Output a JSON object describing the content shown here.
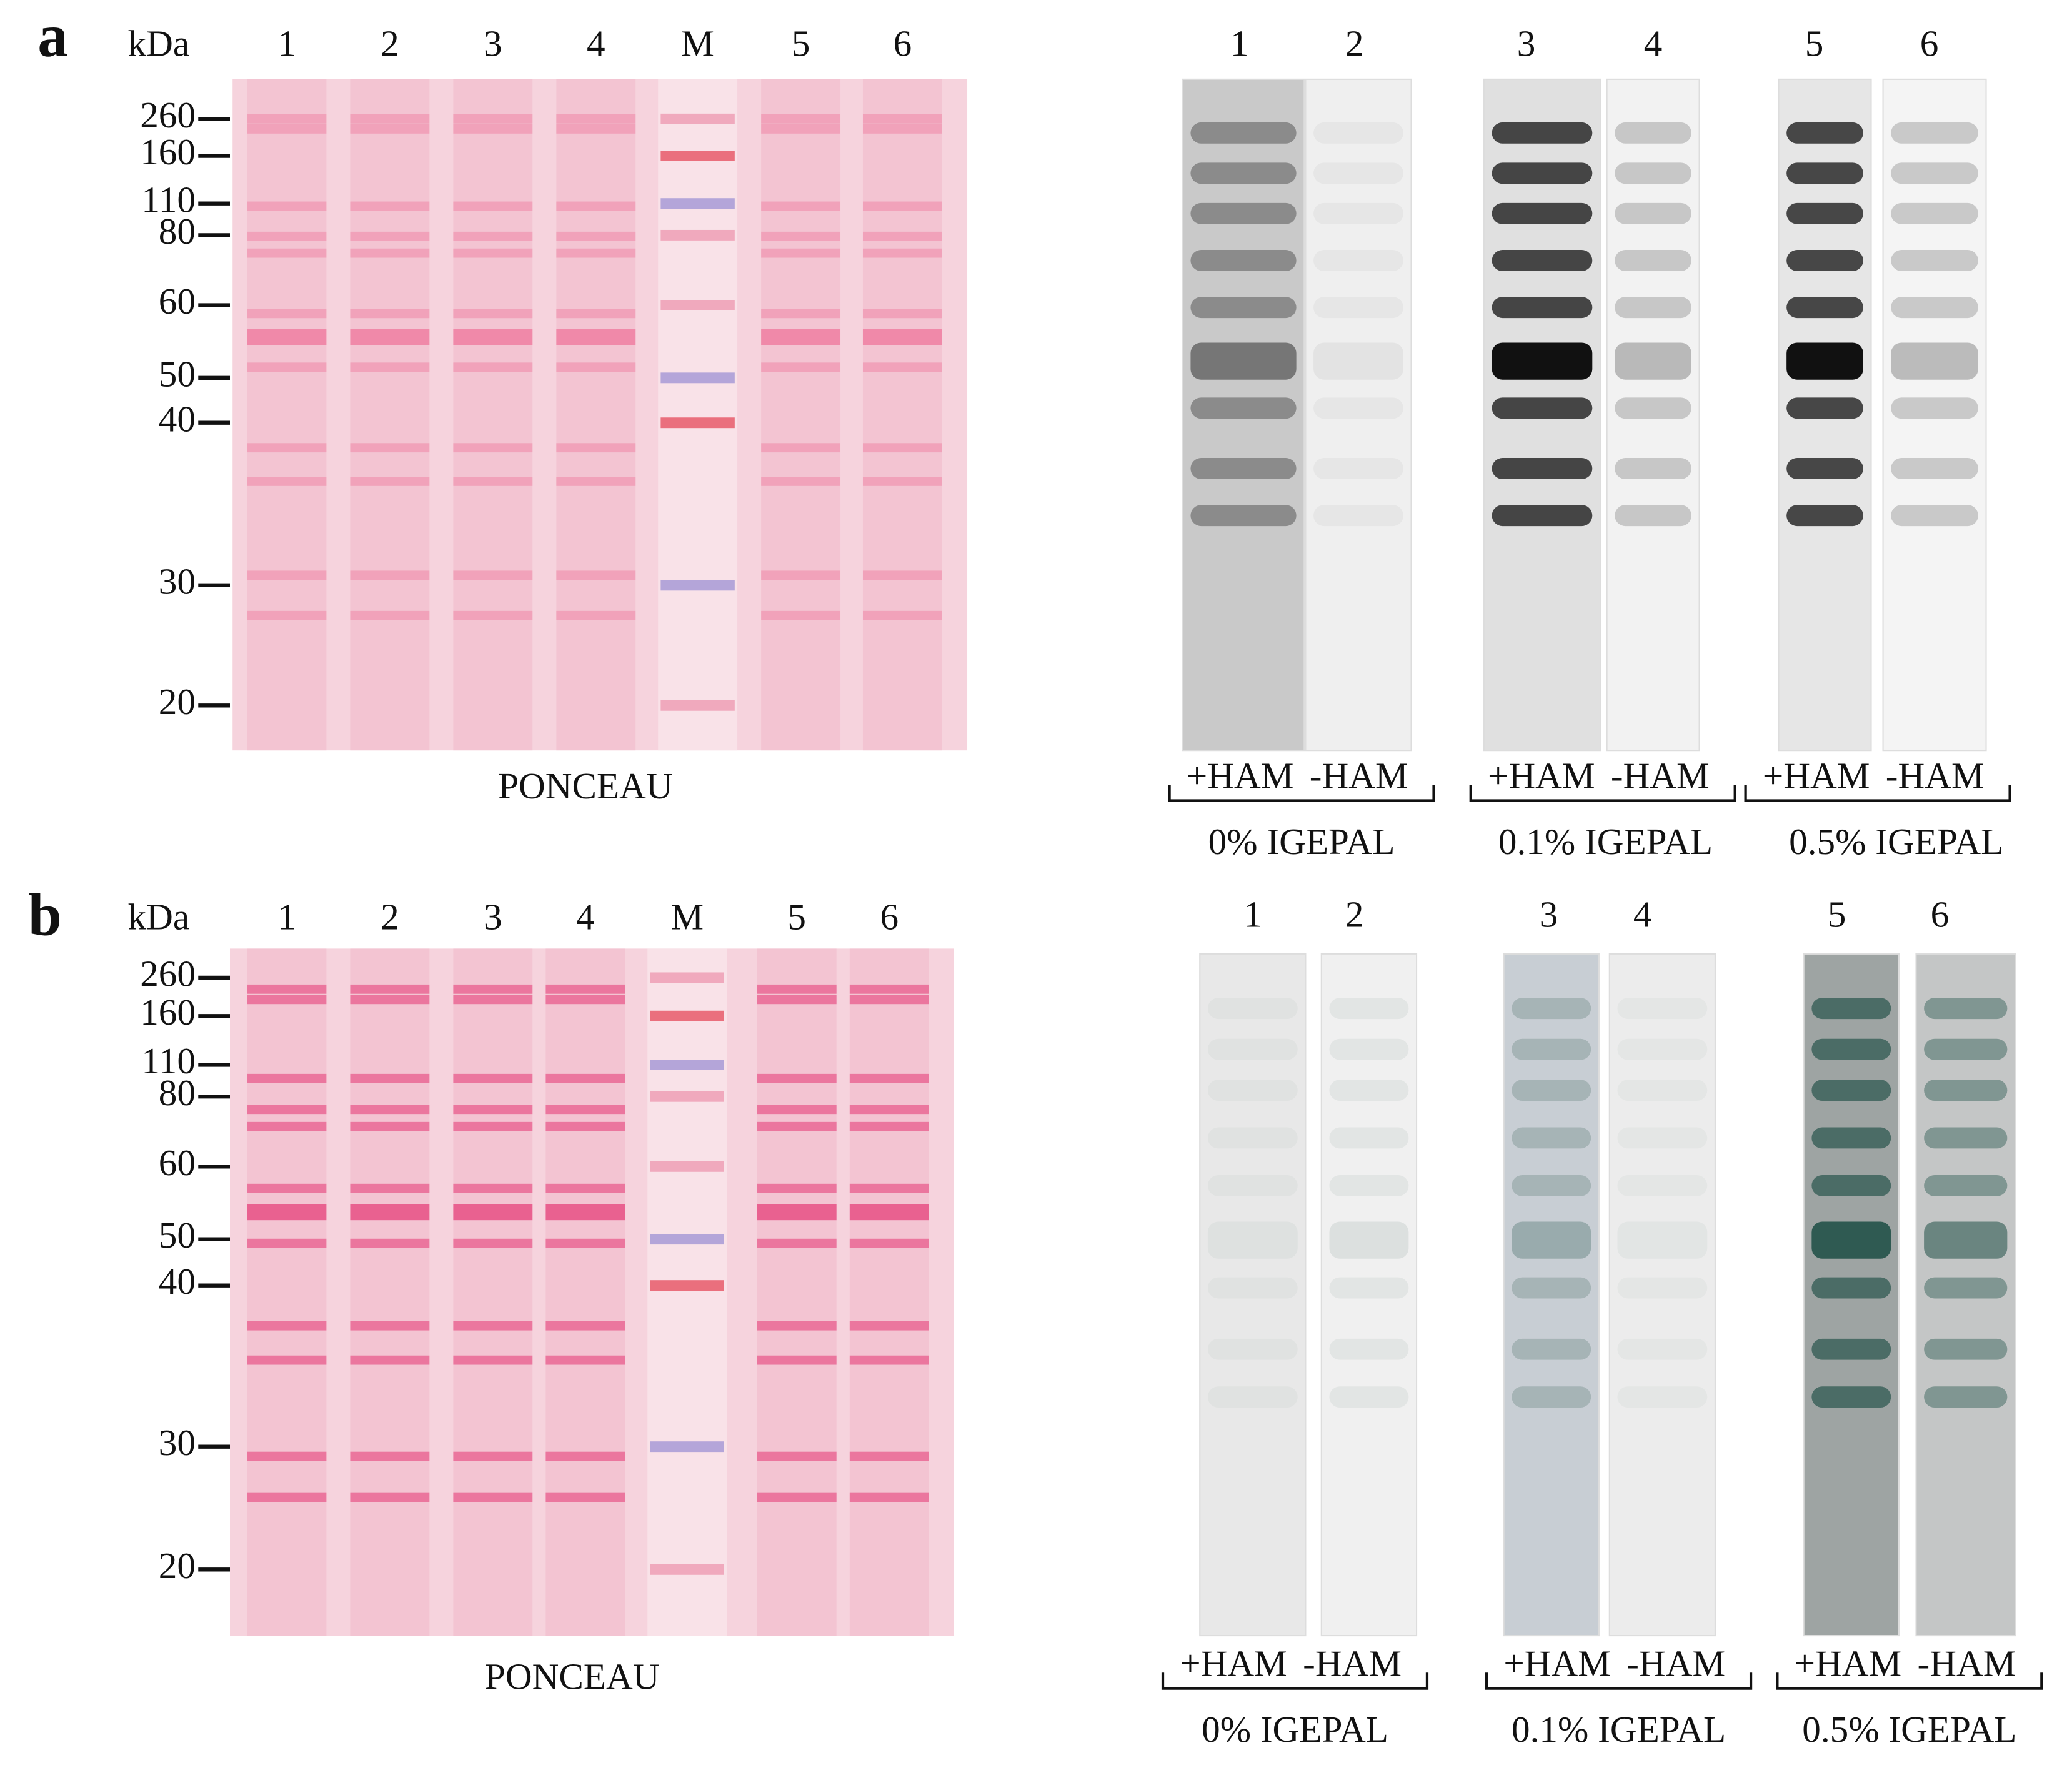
{
  "panels": [
    {
      "label": "a",
      "kda": "kDa",
      "lanes": [
        "1",
        "2",
        "3",
        "4",
        "M",
        "5",
        "6"
      ],
      "markers": [
        "260",
        "160",
        "110",
        "80",
        "60",
        "50",
        "40",
        "30",
        "20"
      ],
      "stain": "PONCEAU",
      "blot_lanes": [
        "1",
        "2",
        "3",
        "4",
        "5",
        "6"
      ],
      "groups": [
        {
          "plus": "+HAM",
          "minus": "-HAM",
          "condition": "0% IGEPAL"
        },
        {
          "plus": "+HAM",
          "minus": "-HAM",
          "condition": "0.1% IGEPAL"
        },
        {
          "plus": "+HAM",
          "minus": "-HAM",
          "condition": "0.5% IGEPAL"
        }
      ]
    },
    {
      "label": "b",
      "kda": "kDa",
      "lanes": [
        "1",
        "2",
        "3",
        "4",
        "M",
        "5",
        "6"
      ],
      "markers": [
        "260",
        "160",
        "110",
        "80",
        "60",
        "50",
        "40",
        "30",
        "20"
      ],
      "stain": "PONCEAU",
      "blot_lanes": [
        "1",
        "2",
        "3",
        "4",
        "5",
        "6"
      ],
      "groups": [
        {
          "plus": "+HAM",
          "minus": "-HAM",
          "condition": "0% IGEPAL"
        },
        {
          "plus": "+HAM",
          "minus": "-HAM",
          "condition": "0.1% IGEPAL"
        },
        {
          "plus": "+HAM",
          "minus": "-HAM",
          "condition": "0.5% IGEPAL"
        }
      ]
    }
  ]
}
